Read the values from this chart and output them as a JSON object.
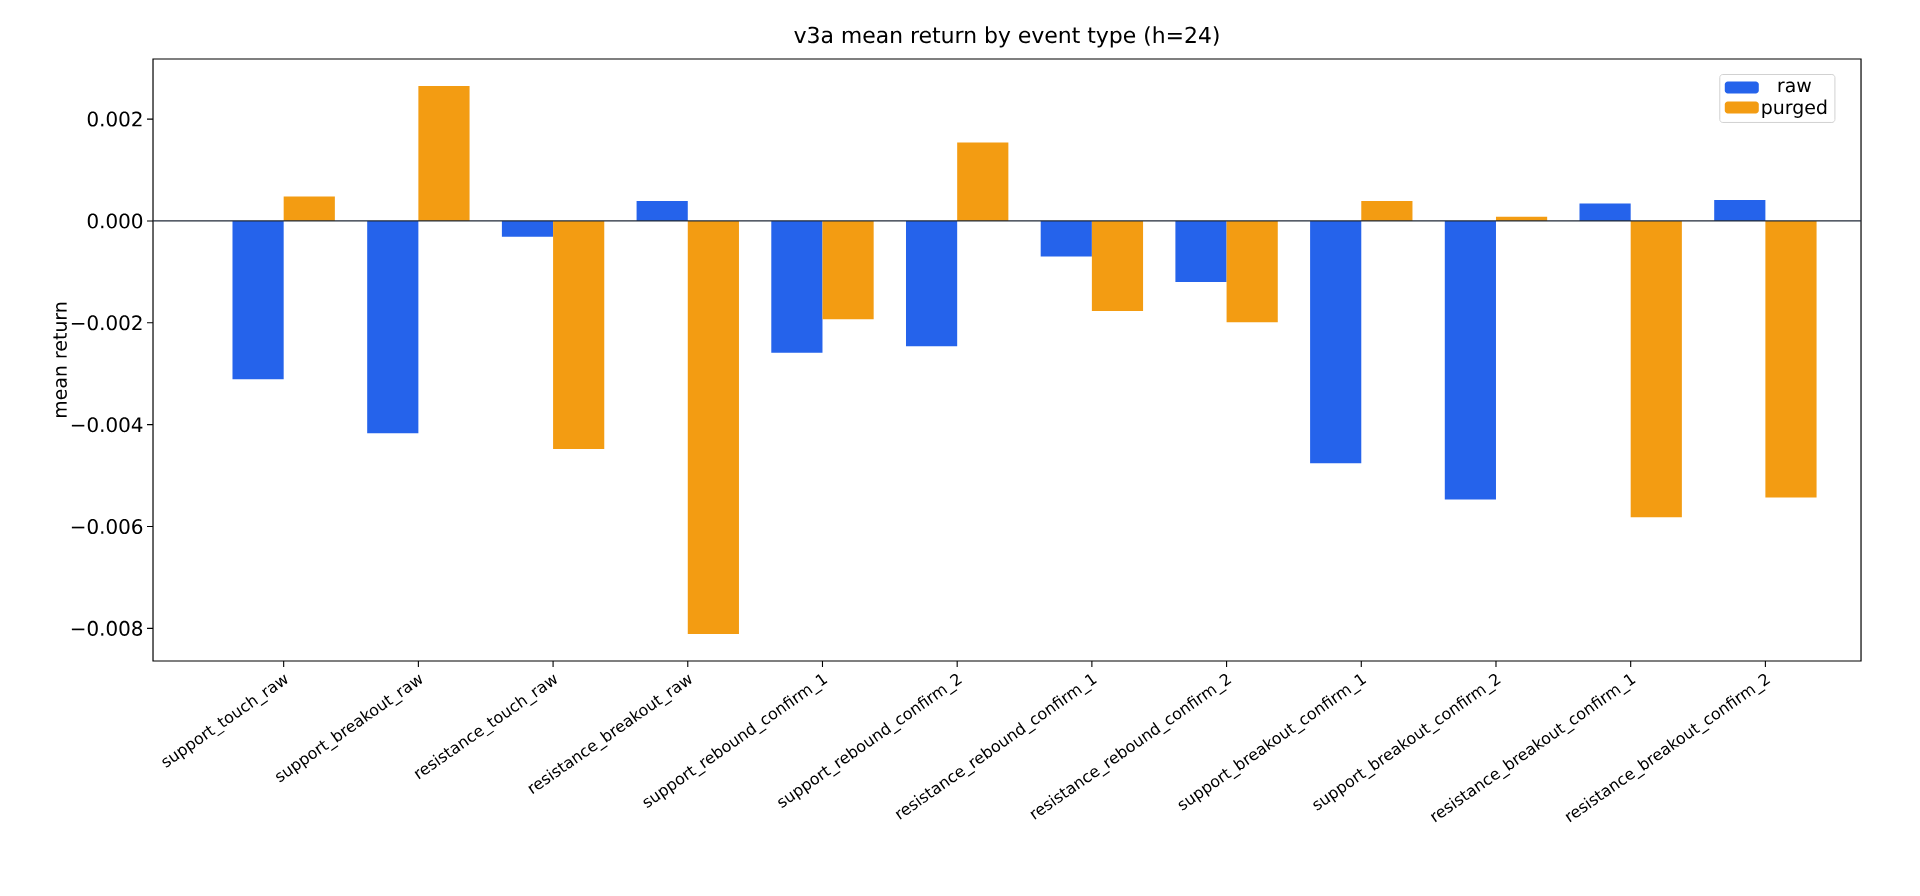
{
  "chart_data": {
    "type": "bar",
    "title": "v3a mean return by event type (h=24)",
    "ylabel": "mean return",
    "categories": [
      "support_touch_raw",
      "support_breakout_raw",
      "resistance_touch_raw",
      "resistance_breakout_raw",
      "support_rebound_confirm_1",
      "support_rebound_confirm_2",
      "resistance_rebound_confirm_1",
      "resistance_rebound_confirm_2",
      "support_breakout_confirm_1",
      "support_breakout_confirm_2",
      "resistance_breakout_confirm_1",
      "resistance_breakout_confirm_2"
    ],
    "series": [
      {
        "name": "raw",
        "color": "#2563eb",
        "values": [
          -0.00311,
          -0.00417,
          -0.00031,
          0.00039,
          -0.00259,
          -0.00246,
          -0.0007,
          -0.0012,
          -0.00476,
          -0.00547,
          0.00034,
          0.00041
        ]
      },
      {
        "name": "purged",
        "color": "#f39c12",
        "values": [
          0.00048,
          0.00265,
          -0.00448,
          -0.00811,
          -0.00193,
          0.00154,
          -0.00177,
          -0.00199,
          0.00039,
          8e-05,
          -0.00582,
          -0.00543
        ]
      }
    ],
    "ylim": [
      -0.00864,
      0.00318
    ],
    "yticks": [
      {
        "value": -0.008,
        "label": "−0.008"
      },
      {
        "value": -0.006,
        "label": "−0.006"
      },
      {
        "value": -0.004,
        "label": "−0.004"
      },
      {
        "value": -0.002,
        "label": "−0.002"
      },
      {
        "value": 0,
        "label": "0.000"
      },
      {
        "value": 0.002,
        "label": "0.002"
      }
    ],
    "ref_lines": [
      {
        "axis": "y",
        "value": 0,
        "color": "#1f2937"
      }
    ],
    "grid": false,
    "legend": "top right"
  }
}
